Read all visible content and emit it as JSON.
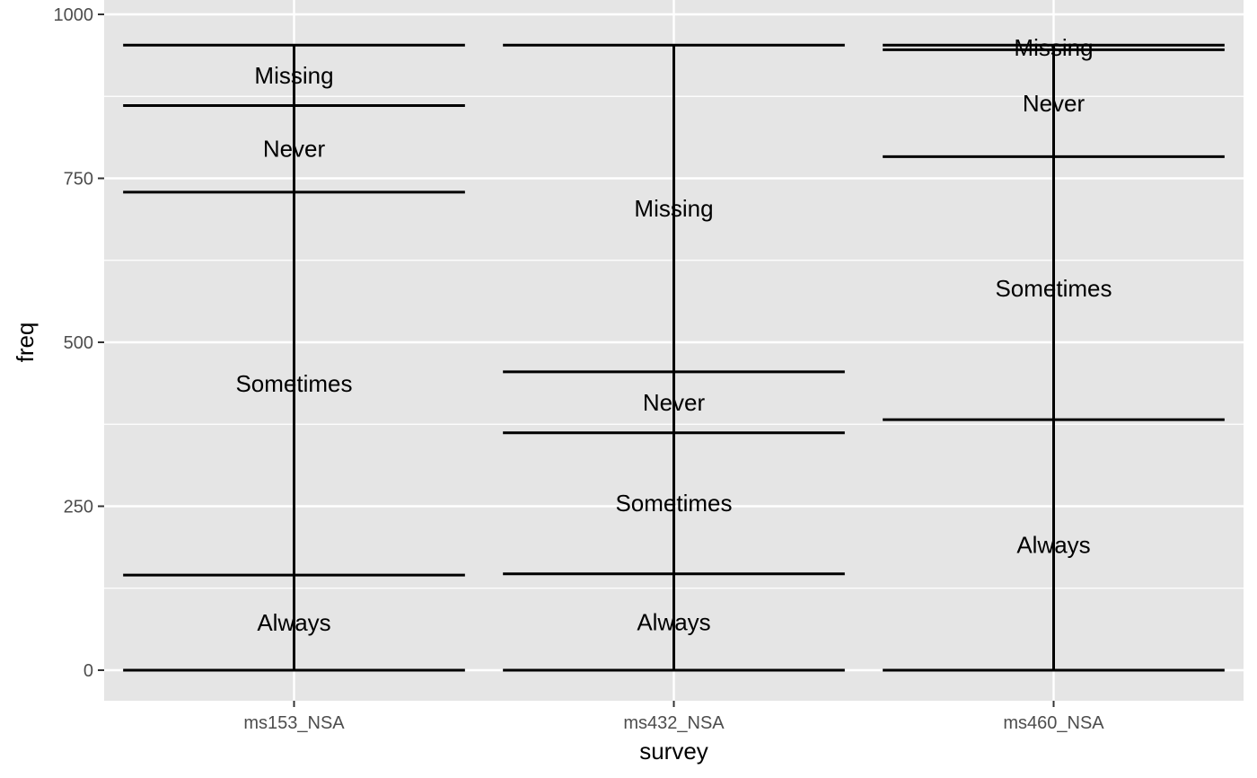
{
  "chart_data": {
    "type": "bar",
    "xlabel": "survey",
    "ylabel": "freq",
    "ylim": [
      0,
      1000
    ],
    "yticks": [
      0,
      250,
      500,
      750,
      1000
    ],
    "categories": [
      "ms153_NSA",
      "ms432_NSA",
      "ms460_NSA"
    ],
    "stacks": [
      {
        "category": "ms153_NSA",
        "segments": [
          {
            "label": "Always",
            "value": 145
          },
          {
            "label": "Sometimes",
            "value": 584
          },
          {
            "label": "Never",
            "value": 132
          },
          {
            "label": "Missing",
            "value": 92
          }
        ]
      },
      {
        "category": "ms432_NSA",
        "segments": [
          {
            "label": "Always",
            "value": 147
          },
          {
            "label": "Sometimes",
            "value": 215
          },
          {
            "label": "Never",
            "value": 93
          },
          {
            "label": "Missing",
            "value": 498
          }
        ]
      },
      {
        "category": "ms460_NSA",
        "segments": [
          {
            "label": "Always",
            "value": 382
          },
          {
            "label": "Sometimes",
            "value": 401
          },
          {
            "label": "Never",
            "value": 163
          },
          {
            "label": "Missing",
            "value": 7
          }
        ]
      }
    ],
    "panel_background": "#e5e5e5",
    "grid_color": "#ffffff",
    "line_color": "#000000",
    "grid": true
  }
}
